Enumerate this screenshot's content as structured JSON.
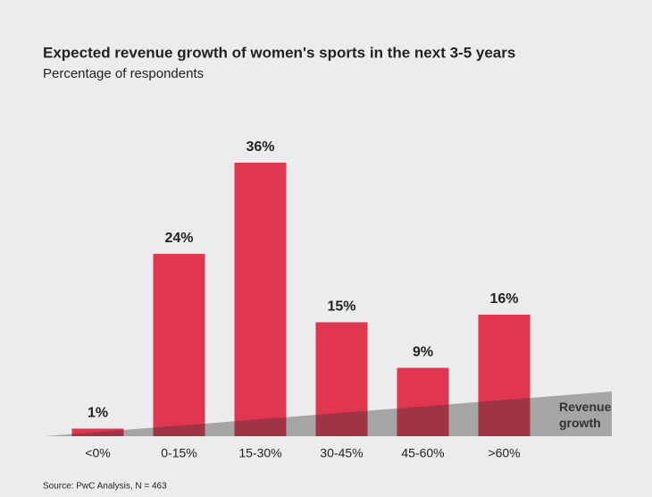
{
  "chart_data": {
    "type": "bar",
    "title": "Expected revenue growth of women's sports in the next 3-5 years",
    "subtitle": "Percentage of respondents",
    "categories": [
      "<0%",
      "0-15%",
      "15-30%",
      "30-45%",
      "45-60%",
      ">60%"
    ],
    "values": [
      1,
      24,
      36,
      15,
      9,
      16
    ],
    "value_labels": [
      "1%",
      "24%",
      "36%",
      "15%",
      "9%",
      "16%"
    ],
    "color": "#e0364f",
    "annotation": "Revenue growth",
    "source": "Source: PwC Analysis, N = 463"
  }
}
